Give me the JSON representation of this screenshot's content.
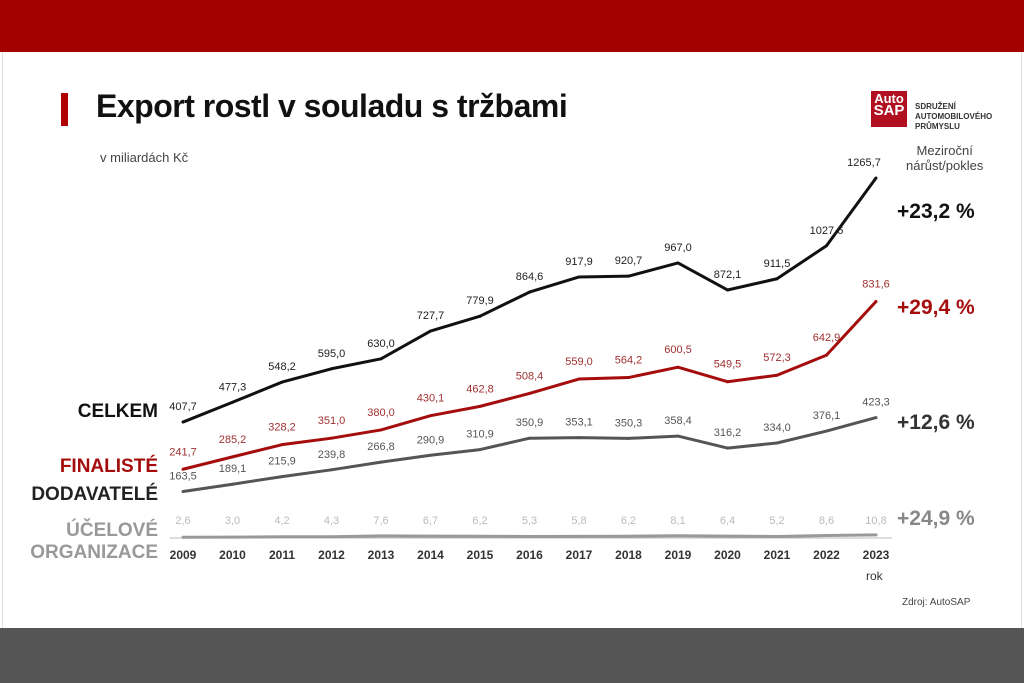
{
  "header": {
    "title": "Export rostl v souladu s tržbami",
    "subtitle": "v miliardách Kč"
  },
  "logo": {
    "mark_line1": "Auto",
    "mark_line2": "SAP",
    "text": "SDRUŽENÍ AUTOMOBILOVÉHO PRŮMYSLU"
  },
  "yoy_header": {
    "line1": "Meziroční",
    "line2": "nárůst/pokles"
  },
  "source": "Zdroj: AutoSAP",
  "chart_data": {
    "type": "line",
    "title": "Export rostl v souladu s tržbami",
    "ylabel": "v miliardách Kč",
    "xlabel": "rok",
    "x": [
      "2009",
      "2010",
      "2011",
      "2012",
      "2013",
      "2014",
      "2015",
      "2016",
      "2017",
      "2018",
      "2019",
      "2020",
      "2021",
      "2022",
      "2023"
    ],
    "series": [
      {
        "name": "CELKEM",
        "color": "#111111",
        "change": "+23,2 %",
        "values": [
          407.7,
          477.3,
          548.2,
          595.0,
          630.0,
          727.7,
          779.9,
          864.6,
          917.9,
          920.7,
          967.0,
          872.1,
          911.5,
          1027.6,
          1265.7
        ],
        "labels": [
          "407,7",
          "477,3",
          "548,2",
          "595,0",
          "630,0",
          "727,7",
          "779,9",
          "864,6",
          "917,9",
          "920,7",
          "967,0",
          "872,1",
          "911,5",
          "1027,6",
          "1265,7"
        ]
      },
      {
        "name": "FINALISTÉ",
        "color": "#a50d0d",
        "change": "+29,4 %",
        "values": [
          241.7,
          285.2,
          328.2,
          351.0,
          380.0,
          430.1,
          462.8,
          508.4,
          559.0,
          564.2,
          600.5,
          549.5,
          572.3,
          642.9,
          831.6
        ],
        "labels": [
          "241,7",
          "285,2",
          "328,2",
          "351,0",
          "380,0",
          "430,1",
          "462,8",
          "508,4",
          "559,0",
          "564,2",
          "600,5",
          "549,5",
          "572,3",
          "642,9",
          "831,6"
        ]
      },
      {
        "name": "DODAVATELÉ",
        "color": "#555555",
        "change": "+12,6 %",
        "values": [
          163.5,
          189.1,
          215.9,
          239.8,
          266.8,
          290.9,
          310.9,
          350.9,
          353.1,
          350.3,
          358.4,
          316.2,
          334.0,
          376.1,
          423.3
        ],
        "labels": [
          "163,5",
          "189,1",
          "215,9",
          "239,8",
          "266,8",
          "290,9",
          "310,9",
          "350,9",
          "353,1",
          "350,3",
          "358,4",
          "316,2",
          "334,0",
          "376,1",
          "423,3"
        ]
      },
      {
        "name": "ÚČELOVÉ ORGANIZACE",
        "color": "#999999",
        "change": "+24,9 %",
        "values": [
          2.6,
          3.0,
          4.2,
          4.3,
          7.6,
          6.7,
          6.2,
          5.3,
          5.8,
          6.2,
          8.1,
          6.4,
          5.2,
          8.6,
          10.8
        ],
        "labels": [
          "2,6",
          "3,0",
          "4,2",
          "4,3",
          "7,6",
          "6,7",
          "6,2",
          "5,3",
          "5,8",
          "6,2",
          "8,1",
          "6,4",
          "5,2",
          "8,6",
          "10,8"
        ]
      }
    ],
    "grid": false
  }
}
